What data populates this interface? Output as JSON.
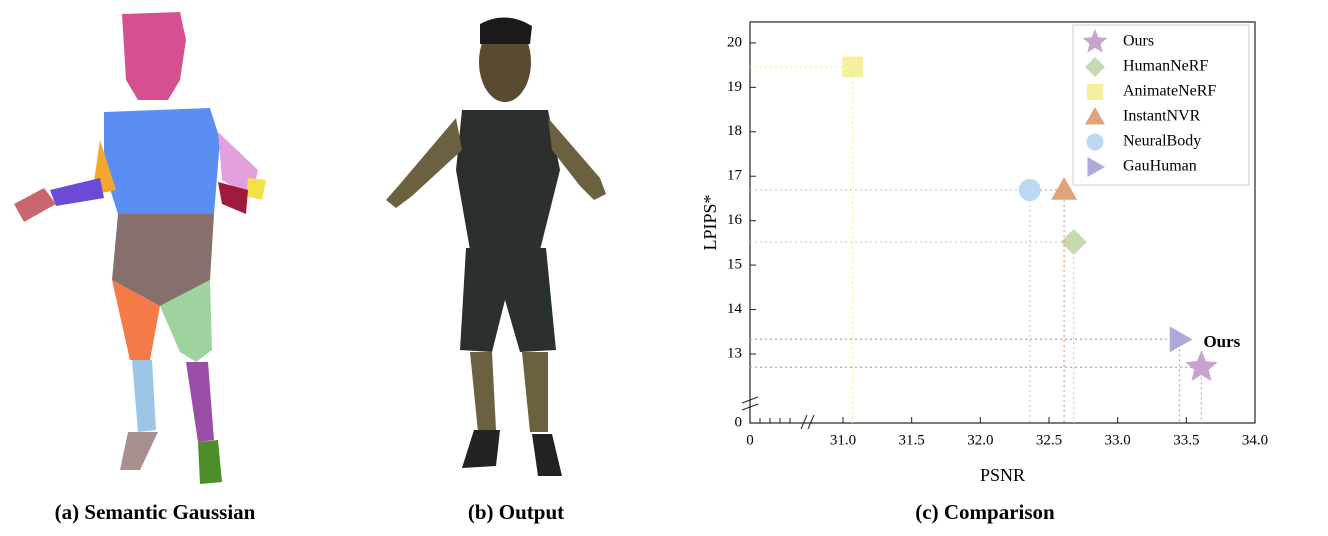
{
  "captions": [
    "(a) Semantic Gaussian",
    "(b) Output",
    "(c) Comparison"
  ],
  "chart_data": {
    "type": "scatter",
    "x_label": "PSNR",
    "y_label": "LPIPS*",
    "annotation": "Ours",
    "xlim": [
      0,
      34
    ],
    "ylim": [
      0,
      20.47
    ],
    "xticks": [
      0,
      {
        "value": 31,
        "label": "31.0"
      },
      31.5,
      {
        "value": 32,
        "label": "32.0"
      },
      32.5,
      {
        "value": 33,
        "label": "33.0"
      },
      33.5,
      {
        "value": 34,
        "label": "34.0"
      }
    ],
    "yticks": [
      0,
      13,
      14,
      15,
      16,
      17,
      18,
      19,
      20
    ],
    "legend": "upper right",
    "guides": true,
    "series": [
      {
        "name": "Ours",
        "color": "#c9a3cf",
        "marker": "star",
        "x": [
          33.61
        ],
        "values": [
          12.7
        ]
      },
      {
        "name": "HumanNeRF",
        "color": "#c6d9b2",
        "marker": "diamond",
        "x": [
          32.68
        ],
        "values": [
          15.52
        ]
      },
      {
        "name": "AnimateNeRF",
        "color": "#f4f0a0",
        "marker": "square",
        "x": [
          31.07
        ],
        "values": [
          19.46
        ]
      },
      {
        "name": "InstantNVR",
        "color": "#dfa47c",
        "marker": "triangle-up",
        "x": [
          32.61
        ],
        "values": [
          16.69
        ]
      },
      {
        "name": "NeuralBody",
        "color": "#bdd8f2",
        "marker": "circle",
        "x": [
          32.36
        ],
        "values": [
          16.69
        ]
      },
      {
        "name": "GauHuman",
        "color": "#ada9d8",
        "marker": "triangle-right",
        "x": [
          33.45
        ],
        "values": [
          13.33
        ]
      }
    ]
  }
}
